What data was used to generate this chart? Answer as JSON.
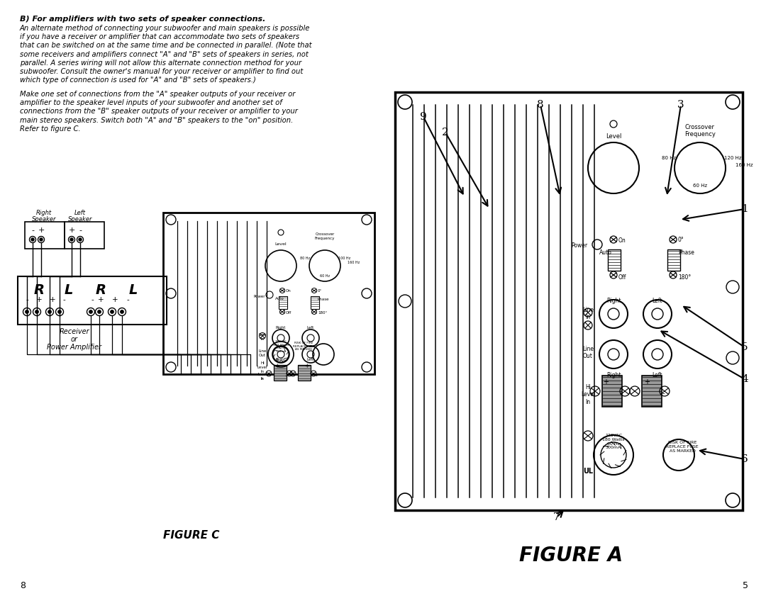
{
  "bg_color": "#ffffff",
  "title_bold": "B) For amplifiers with two sets of speaker connections.",
  "para1_lines": [
    "An alternate method of connecting your subwoofer and main speakers is possible",
    "if you have a receiver or amplifier that can accommodate two sets of speakers",
    "that can be switched on at the same time and be connected in parallel. (Note that",
    "some receivers and amplifiers connect \"A\" and \"B\" sets of speakers in series, not",
    "parallel. A series wiring will not allow this alternate connection method for your",
    "subwoofer. Consult the owner's manual for your receiver or amplifier to find out",
    "which type of connection is used for \"A\" and \"B\" sets of speakers.)"
  ],
  "para2_lines": [
    "Make one set of connections from the \"A\" speaker outputs of your receiver or",
    "amplifier to the speaker level inputs of your subwoofer and another set of",
    "connections from the \"B\" speaker outputs of your receiver or amplifier to your",
    "main stereo speakers. Switch both \"A\" and \"B\" speakers to the \"on\" position.",
    "Refer to figure C."
  ],
  "figure_c_label": "FIGURE C",
  "figure_a_label": "FIGURE A",
  "page_left": "8",
  "page_right": "5"
}
